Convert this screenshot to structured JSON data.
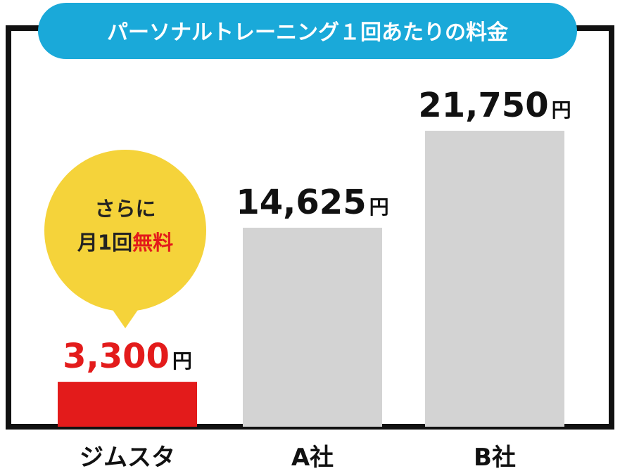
{
  "chart_data": {
    "type": "bar",
    "title": "パーソナルトレーニング１回あたりの料金",
    "categories": [
      "ジムスタ",
      "A社",
      "B社"
    ],
    "values": [
      3300,
      14625,
      21750
    ],
    "value_labels": [
      "3,300",
      "14,625",
      "21,750"
    ],
    "unit": "円",
    "ylim": [
      0,
      21750
    ],
    "grid": false,
    "colors": {
      "highlight_bar": "#e31b1b",
      "highlight_text": "#e31b1b",
      "other_bar": "#d3d3d3",
      "other_text": "#111111",
      "title_bg": "#1aa9d9",
      "frame": "#111111"
    },
    "annotation": {
      "category": "ジムスタ",
      "line1": "さらに",
      "line2_prefix": "月1回",
      "line2_highlight": "無料",
      "bubble_color": "#f5d33a",
      "highlight_color": "#e31b1b"
    }
  }
}
